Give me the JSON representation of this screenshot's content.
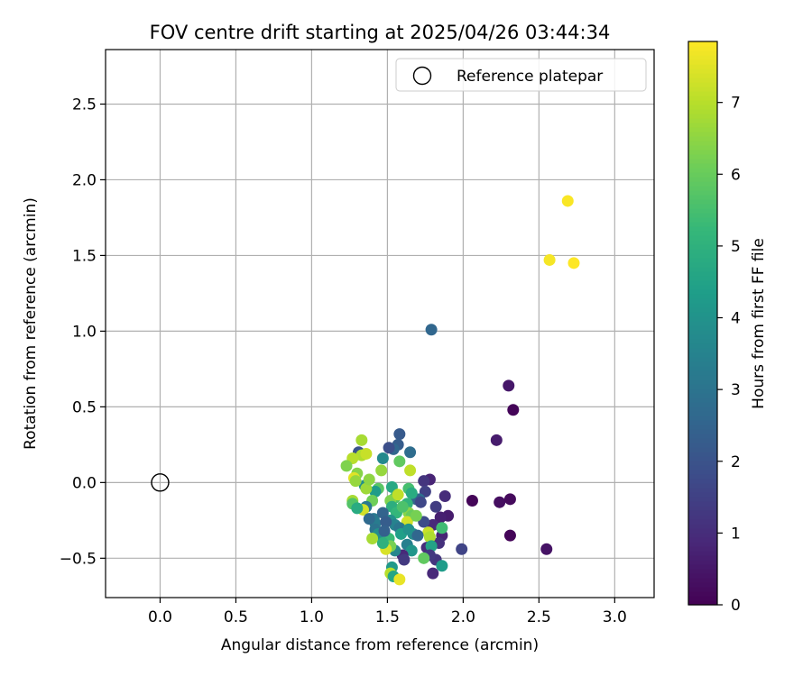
{
  "chart_data": {
    "type": "scatter",
    "title": "FOV centre drift starting at 2025/04/26 03:44:34",
    "xlabel": "Angular distance from reference (arcmin)",
    "ylabel": "Rotation from reference (arcmin)",
    "xlim": [
      -0.36,
      3.26
    ],
    "ylim": [
      -0.76,
      2.86
    ],
    "xticks": [
      0.0,
      0.5,
      1.0,
      1.5,
      2.0,
      2.5,
      3.0
    ],
    "xtick_labels": [
      "0.0",
      "0.5",
      "1.0",
      "1.5",
      "2.0",
      "2.5",
      "3.0"
    ],
    "yticks": [
      -0.5,
      0.0,
      0.5,
      1.0,
      1.5,
      2.0,
      2.5
    ],
    "ytick_labels": [
      "−0.5",
      "0.0",
      "0.5",
      "1.0",
      "1.5",
      "2.0",
      "2.5"
    ],
    "grid": true,
    "legend": {
      "position": "top-right",
      "entries": [
        "Reference platepar"
      ]
    },
    "reference_point": {
      "x": 0.0,
      "y": 0.0,
      "marker": "open circle",
      "color": "#000000"
    },
    "colorbar": {
      "label": "Hours from first FF file",
      "colormap": "viridis",
      "range": [
        0,
        7.85
      ],
      "ticks": [
        0,
        1,
        2,
        3,
        4,
        5,
        6,
        7
      ],
      "tick_labels": [
        "0",
        "1",
        "2",
        "3",
        "4",
        "5",
        "6",
        "7"
      ]
    },
    "points": [
      {
        "x": 2.69,
        "y": 1.86,
        "t": 7.8
      },
      {
        "x": 2.57,
        "y": 1.47,
        "t": 7.75
      },
      {
        "x": 2.73,
        "y": 1.45,
        "t": 7.85
      },
      {
        "x": 1.79,
        "y": 1.01,
        "t": 2.6
      },
      {
        "x": 2.3,
        "y": 0.64,
        "t": 0.5
      },
      {
        "x": 2.33,
        "y": 0.48,
        "t": 0.1
      },
      {
        "x": 2.22,
        "y": 0.28,
        "t": 0.6
      },
      {
        "x": 2.06,
        "y": -0.12,
        "t": 0.1
      },
      {
        "x": 2.24,
        "y": -0.13,
        "t": 0.3
      },
      {
        "x": 2.31,
        "y": -0.11,
        "t": 0.2
      },
      {
        "x": 2.31,
        "y": -0.35,
        "t": 0.1
      },
      {
        "x": 2.55,
        "y": -0.44,
        "t": 0.4
      },
      {
        "x": 1.99,
        "y": -0.44,
        "t": 1.6
      },
      {
        "x": 1.88,
        "y": -0.09,
        "t": 1.0
      },
      {
        "x": 1.9,
        "y": -0.22,
        "t": 0.6
      },
      {
        "x": 1.86,
        "y": -0.35,
        "t": 0.8
      },
      {
        "x": 1.84,
        "y": -0.4,
        "t": 1.1
      },
      {
        "x": 1.82,
        "y": -0.16,
        "t": 1.4
      },
      {
        "x": 1.85,
        "y": -0.23,
        "t": 0.7
      },
      {
        "x": 1.8,
        "y": -0.28,
        "t": 0.9
      },
      {
        "x": 1.82,
        "y": -0.51,
        "t": 1.2
      },
      {
        "x": 1.8,
        "y": -0.6,
        "t": 0.9
      },
      {
        "x": 1.86,
        "y": -0.55,
        "t": 4.3
      },
      {
        "x": 1.86,
        "y": -0.3,
        "t": 5.4
      },
      {
        "x": 1.78,
        "y": 0.02,
        "t": 0.8
      },
      {
        "x": 1.74,
        "y": 0.01,
        "t": 1.2
      },
      {
        "x": 1.75,
        "y": -0.06,
        "t": 1.5
      },
      {
        "x": 1.74,
        "y": -0.26,
        "t": 1.8
      },
      {
        "x": 1.77,
        "y": -0.33,
        "t": 7.2
      },
      {
        "x": 1.78,
        "y": -0.36,
        "t": 6.9
      },
      {
        "x": 1.76,
        "y": -0.43,
        "t": 1.0
      },
      {
        "x": 1.79,
        "y": -0.42,
        "t": 4.5
      },
      {
        "x": 1.78,
        "y": -0.48,
        "t": 1.3
      },
      {
        "x": 1.74,
        "y": -0.5,
        "t": 5.9
      },
      {
        "x": 1.71,
        "y": -0.11,
        "t": 2.9
      },
      {
        "x": 1.69,
        "y": -0.11,
        "t": 2.5
      },
      {
        "x": 1.65,
        "y": 0.2,
        "t": 2.8
      },
      {
        "x": 1.65,
        "y": 0.08,
        "t": 7.1
      },
      {
        "x": 1.64,
        "y": -0.04,
        "t": 5.5
      },
      {
        "x": 1.66,
        "y": -0.07,
        "t": 4.8
      },
      {
        "x": 1.63,
        "y": -0.14,
        "t": 5.1
      },
      {
        "x": 1.64,
        "y": -0.2,
        "t": 6.4
      },
      {
        "x": 1.66,
        "y": -0.22,
        "t": 6.0
      },
      {
        "x": 1.63,
        "y": -0.26,
        "t": 7.3
      },
      {
        "x": 1.67,
        "y": -0.34,
        "t": 3.8
      },
      {
        "x": 1.63,
        "y": -0.41,
        "t": 3.4
      },
      {
        "x": 1.66,
        "y": -0.45,
        "t": 4.1
      },
      {
        "x": 1.6,
        "y": -0.48,
        "t": 0.9
      },
      {
        "x": 1.61,
        "y": -0.51,
        "t": 1.3
      },
      {
        "x": 1.58,
        "y": 0.32,
        "t": 2.2
      },
      {
        "x": 1.57,
        "y": 0.25,
        "t": 2.3
      },
      {
        "x": 1.54,
        "y": 0.22,
        "t": 2.6
      },
      {
        "x": 1.51,
        "y": 0.23,
        "t": 1.9
      },
      {
        "x": 1.58,
        "y": 0.14,
        "t": 5.9
      },
      {
        "x": 1.53,
        "y": -0.03,
        "t": 4.7
      },
      {
        "x": 1.55,
        "y": -0.1,
        "t": 5.6
      },
      {
        "x": 1.52,
        "y": -0.12,
        "t": 6.3
      },
      {
        "x": 1.53,
        "y": -0.16,
        "t": 4.9
      },
      {
        "x": 1.56,
        "y": -0.2,
        "t": 5.2
      },
      {
        "x": 1.52,
        "y": -0.25,
        "t": 4.0
      },
      {
        "x": 1.55,
        "y": -0.28,
        "t": 3.5
      },
      {
        "x": 1.58,
        "y": -0.3,
        "t": 3.1
      },
      {
        "x": 1.59,
        "y": -0.34,
        "t": 4.4
      },
      {
        "x": 1.51,
        "y": -0.37,
        "t": 5.3
      },
      {
        "x": 1.55,
        "y": -0.45,
        "t": 3.6
      },
      {
        "x": 1.52,
        "y": -0.42,
        "t": 6.2
      },
      {
        "x": 1.49,
        "y": -0.44,
        "t": 7.4
      },
      {
        "x": 1.53,
        "y": -0.56,
        "t": 4.2
      },
      {
        "x": 1.52,
        "y": -0.6,
        "t": 7.0
      },
      {
        "x": 1.54,
        "y": -0.62,
        "t": 4.6
      },
      {
        "x": 1.58,
        "y": -0.64,
        "t": 7.6
      },
      {
        "x": 1.47,
        "y": 0.16,
        "t": 3.7
      },
      {
        "x": 1.46,
        "y": 0.08,
        "t": 6.6
      },
      {
        "x": 1.44,
        "y": -0.04,
        "t": 5.8
      },
      {
        "x": 1.42,
        "y": -0.06,
        "t": 4.3
      },
      {
        "x": 1.4,
        "y": -0.12,
        "t": 6.1
      },
      {
        "x": 1.41,
        "y": -0.24,
        "t": 3.2
      },
      {
        "x": 1.42,
        "y": -0.27,
        "t": 3.3
      },
      {
        "x": 1.42,
        "y": -0.31,
        "t": 3.0
      },
      {
        "x": 1.44,
        "y": -0.34,
        "t": 3.9
      },
      {
        "x": 1.4,
        "y": -0.37,
        "t": 6.8
      },
      {
        "x": 1.47,
        "y": -0.4,
        "t": 5.0
      },
      {
        "x": 1.35,
        "y": -0.02,
        "t": 3.9
      },
      {
        "x": 1.36,
        "y": -0.04,
        "t": 6.7
      },
      {
        "x": 1.38,
        "y": 0.02,
        "t": 6.5
      },
      {
        "x": 1.36,
        "y": -0.16,
        "t": 3.2
      },
      {
        "x": 1.34,
        "y": -0.18,
        "t": 7.3
      },
      {
        "x": 1.38,
        "y": -0.24,
        "t": 2.7
      },
      {
        "x": 1.31,
        "y": 0.2,
        "t": 2.0
      },
      {
        "x": 1.33,
        "y": 0.18,
        "t": 6.9
      },
      {
        "x": 1.36,
        "y": 0.19,
        "t": 7.2
      },
      {
        "x": 1.33,
        "y": 0.28,
        "t": 6.8
      },
      {
        "x": 1.27,
        "y": 0.16,
        "t": 7.0
      },
      {
        "x": 1.3,
        "y": 0.06,
        "t": 6.4
      },
      {
        "x": 1.28,
        "y": 0.03,
        "t": 7.5
      },
      {
        "x": 1.29,
        "y": 0.01,
        "t": 6.6
      },
      {
        "x": 1.27,
        "y": -0.12,
        "t": 6.8
      },
      {
        "x": 1.27,
        "y": -0.14,
        "t": 5.7
      },
      {
        "x": 1.3,
        "y": -0.17,
        "t": 4.8
      },
      {
        "x": 1.23,
        "y": 0.11,
        "t": 6.3
      },
      {
        "x": 1.47,
        "y": -0.2,
        "t": 2.5
      },
      {
        "x": 1.49,
        "y": -0.26,
        "t": 2.3
      },
      {
        "x": 1.48,
        "y": -0.32,
        "t": 2.4
      },
      {
        "x": 1.57,
        "y": -0.08,
        "t": 7.1
      },
      {
        "x": 1.6,
        "y": -0.16,
        "t": 5.6
      },
      {
        "x": 1.64,
        "y": -0.31,
        "t": 4.0
      },
      {
        "x": 1.7,
        "y": -0.35,
        "t": 2.6
      },
      {
        "x": 1.69,
        "y": -0.22,
        "t": 6.2
      },
      {
        "x": 1.72,
        "y": -0.13,
        "t": 1.7
      }
    ]
  }
}
